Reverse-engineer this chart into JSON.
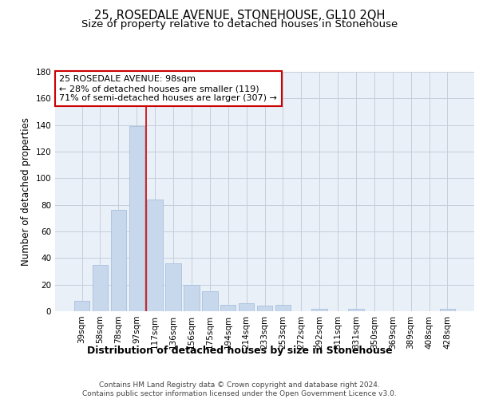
{
  "title": "25, ROSEDALE AVENUE, STONEHOUSE, GL10 2QH",
  "subtitle": "Size of property relative to detached houses in Stonehouse",
  "xlabel": "Distribution of detached houses by size in Stonehouse",
  "ylabel": "Number of detached properties",
  "categories": [
    "39sqm",
    "58sqm",
    "78sqm",
    "97sqm",
    "117sqm",
    "136sqm",
    "156sqm",
    "175sqm",
    "194sqm",
    "214sqm",
    "233sqm",
    "253sqm",
    "272sqm",
    "292sqm",
    "311sqm",
    "331sqm",
    "350sqm",
    "369sqm",
    "389sqm",
    "408sqm",
    "428sqm"
  ],
  "values": [
    8,
    35,
    76,
    139,
    84,
    36,
    20,
    15,
    5,
    6,
    4,
    5,
    0,
    2,
    0,
    2,
    0,
    0,
    0,
    0,
    2
  ],
  "bar_color": "#c8d8ec",
  "bar_edge_color": "#a8c0dc",
  "vline_x": 3.5,
  "vline_color": "#cc0000",
  "annotation_text": "25 ROSEDALE AVENUE: 98sqm\n← 28% of detached houses are smaller (119)\n71% of semi-detached houses are larger (307) →",
  "annotation_box_color": "#ffffff",
  "annotation_box_edge_color": "#cc0000",
  "ylim": [
    0,
    180
  ],
  "yticks": [
    0,
    20,
    40,
    60,
    80,
    100,
    120,
    140,
    160,
    180
  ],
  "grid_color": "#c4cedc",
  "background_color": "#eaf0f8",
  "footer_text": "Contains HM Land Registry data © Crown copyright and database right 2024.\nContains public sector information licensed under the Open Government Licence v3.0.",
  "title_fontsize": 10.5,
  "subtitle_fontsize": 9.5,
  "xlabel_fontsize": 9,
  "ylabel_fontsize": 8.5,
  "tick_fontsize": 7.5,
  "annotation_fontsize": 8,
  "footer_fontsize": 6.5
}
